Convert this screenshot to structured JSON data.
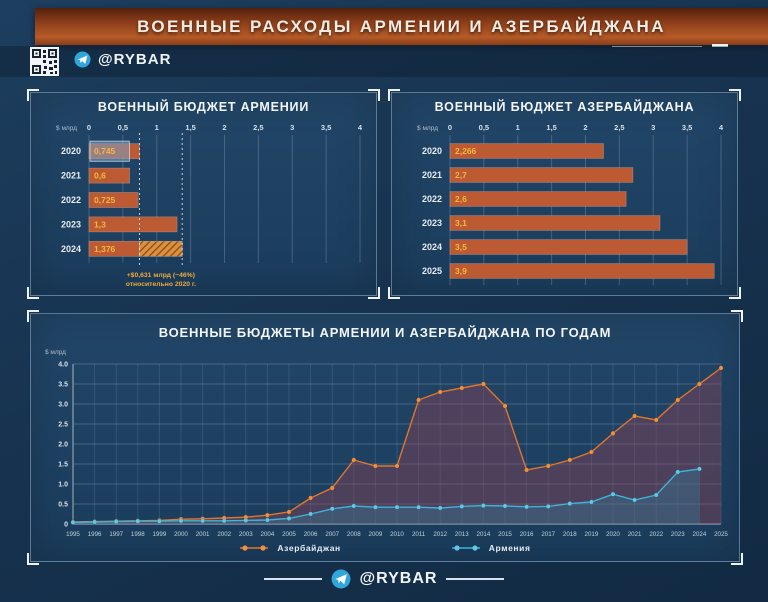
{
  "header": {
    "title": "ВОЕННЫЕ РАСХОДЫ АРМЕНИИ И АЗЕРБАЙДЖАНА",
    "channel": "@RYBAR"
  },
  "footer": {
    "channel": "@RYBAR"
  },
  "colors": {
    "background": "#173350",
    "panel": "#1e4062",
    "bar": "#bb5a33",
    "bar_stroke": "#d8845a",
    "value_label": "#f3b83f",
    "azerbaijan_line": "#e0762e",
    "azerbaijan_dot": "#f0913f",
    "azerbaijan_area": "rgba(154,66,84,0.38)",
    "armenia_line": "#3fb3da",
    "armenia_dot": "#63c6e4",
    "armenia_area": "rgba(43,135,160,0.33)",
    "grid": "rgba(210,225,240,0.22)",
    "axis_text": "#d7e0ea",
    "banner_orange": "#b65b28",
    "highlight_box": "rgba(125,160,195,0.55)",
    "annotation": "#eda93c"
  },
  "chart_data": [
    {
      "id": "armenia_bars",
      "type": "bar",
      "orientation": "horizontal",
      "title": "ВОЕННЫЙ БЮДЖЕТ АРМЕНИИ",
      "unit_label": "$ млрд",
      "categories": [
        "2020",
        "2021",
        "2022",
        "2023",
        "2024"
      ],
      "values": [
        0.745,
        0.6,
        0.725,
        1.3,
        1.376
      ],
      "value_labels": [
        "0,745",
        "0,6",
        "0,725",
        "1,3",
        "1,376"
      ],
      "xticks": [
        "0",
        "0,5",
        "1",
        "1,5",
        "2",
        "2,5",
        "3",
        "3,5",
        "4"
      ],
      "xlim": [
        0,
        4
      ],
      "grid": true,
      "highlight_index": 0,
      "hatch_index": 4,
      "hatch_from": 0.745,
      "reference_lines": [
        0.745,
        1.376
      ],
      "annotation": {
        "line1": "+$0,631 млрд (~46%)",
        "line2": "относительно 2020 г."
      }
    },
    {
      "id": "azerbaijan_bars",
      "type": "bar",
      "orientation": "horizontal",
      "title": "ВОЕННЫЙ БЮДЖЕТ АЗЕРБАЙДЖАНА",
      "unit_label": "$ млрд",
      "categories": [
        "2020",
        "2021",
        "2022",
        "2023",
        "2024",
        "2025"
      ],
      "values": [
        2.266,
        2.7,
        2.6,
        3.1,
        3.5,
        3.9
      ],
      "value_labels": [
        "2,266",
        "2,7",
        "2,6",
        "3,1",
        "3,5",
        "3,9"
      ],
      "xticks": [
        "0",
        "0,5",
        "1",
        "1,5",
        "2",
        "2,5",
        "3",
        "3,5",
        "4"
      ],
      "xlim": [
        0,
        4
      ],
      "grid": true
    },
    {
      "id": "timeline",
      "type": "line",
      "title": "ВОЕННЫЕ БЮДЖЕТЫ АРМЕНИИ И АЗЕРБАЙДЖАНА ПО ГОДАМ",
      "unit_label": "$ млрд",
      "x": [
        "1995",
        "1996",
        "1997",
        "1998",
        "1999",
        "2000",
        "2001",
        "2002",
        "2003",
        "2004",
        "2005",
        "2006",
        "2007",
        "2008",
        "2009",
        "2010",
        "2011",
        "2012",
        "2013",
        "2014",
        "2015",
        "2016",
        "2017",
        "2018",
        "2019",
        "2020",
        "2021",
        "2022",
        "2023",
        "2024",
        "2025"
      ],
      "yticks": [
        "4.0",
        "3.5",
        "3.0",
        "2.5",
        "2.0",
        "1.5",
        "1.0",
        "0.5",
        "0"
      ],
      "ylim": [
        0,
        4
      ],
      "grid": true,
      "legend_position": "bottom",
      "series": [
        {
          "name": "Азербайджан",
          "values": [
            0.05,
            0.06,
            0.07,
            0.08,
            0.09,
            0.12,
            0.13,
            0.15,
            0.17,
            0.22,
            0.3,
            0.65,
            0.9,
            1.6,
            1.45,
            1.45,
            3.1,
            3.3,
            3.4,
            3.5,
            2.95,
            1.35,
            1.45,
            1.6,
            1.8,
            2.266,
            2.7,
            2.6,
            3.1,
            3.5,
            3.9
          ]
        },
        {
          "name": "Армения",
          "values": [
            0.04,
            0.05,
            0.06,
            0.07,
            0.07,
            0.08,
            0.08,
            0.08,
            0.09,
            0.1,
            0.14,
            0.25,
            0.38,
            0.45,
            0.42,
            0.42,
            0.42,
            0.4,
            0.44,
            0.46,
            0.45,
            0.43,
            0.44,
            0.51,
            0.55,
            0.745,
            0.6,
            0.725,
            1.3,
            1.376,
            null
          ]
        }
      ]
    }
  ]
}
